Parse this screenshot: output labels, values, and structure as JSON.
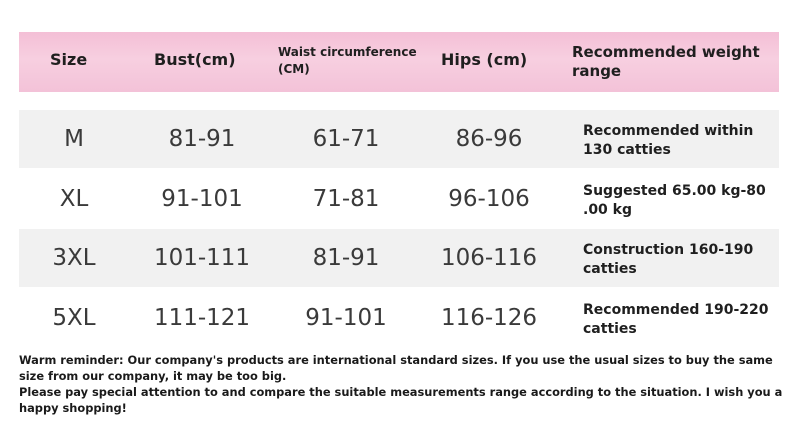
{
  "header": {
    "size": "Size",
    "bust": "Bust(cm)",
    "waist": "Waist circumference (CM)",
    "hips": "Hips (cm)",
    "weight": "Recommended weight range"
  },
  "rows": [
    {
      "size": "M",
      "bust": "81-91",
      "waist": "61-71",
      "hips": "86-96",
      "weight": "Recommended within 130 catties"
    },
    {
      "size": "XL",
      "bust": "91-101",
      "waist": "71-81",
      "hips": "96-106",
      "weight": "Suggested 65.00 kg-80 .00 kg"
    },
    {
      "size": "3XL",
      "bust": "101-111",
      "waist": "81-91",
      "hips": "106-116",
      "weight": "Construction 160-190 catties"
    },
    {
      "size": "5XL",
      "bust": "111-121",
      "waist": "91-101",
      "hips": "116-126",
      "weight": "Recommended 190-220 catties"
    }
  ],
  "notes": {
    "line1": "Warm reminder: Our company's products are international standard sizes. If you use the usual sizes to buy the same size from our company, it may be too big.",
    "line2": "Please pay special attention to and compare the suitable measurements range according to the situation. I wish you a happy shopping!"
  }
}
